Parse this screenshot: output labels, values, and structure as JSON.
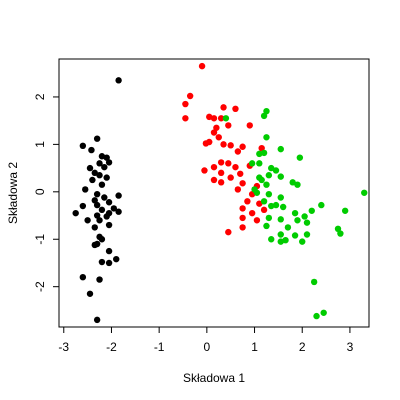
{
  "chart_data": {
    "type": "scatter",
    "title": "",
    "xlabel": "Składowa 1",
    "ylabel": "Składowa 2",
    "xlim": [
      -3.1,
      3.4
    ],
    "ylim": [
      -2.85,
      2.8
    ],
    "x_ticks": [
      -3,
      -2,
      -1,
      0,
      1,
      2,
      3
    ],
    "y_ticks": [
      -2,
      -1,
      0,
      1,
      2
    ],
    "grid": false,
    "legend": "none",
    "series": [
      {
        "color": "#000000",
        "points": [
          [
            -1.85,
            2.35
          ],
          [
            -2.6,
            0.97
          ],
          [
            -2.3,
            1.12
          ],
          [
            -2.42,
            0.88
          ],
          [
            -2.2,
            0.75
          ],
          [
            -2.1,
            0.72
          ],
          [
            -2.05,
            0.62
          ],
          [
            -2.25,
            0.6
          ],
          [
            -2.15,
            0.52
          ],
          [
            -2.45,
            0.5
          ],
          [
            -2.35,
            0.4
          ],
          [
            -2.25,
            0.35
          ],
          [
            -2.1,
            0.3
          ],
          [
            -2.4,
            0.25
          ],
          [
            -2.2,
            0.15
          ],
          [
            -2.55,
            0.05
          ],
          [
            -2.3,
            -0.05
          ],
          [
            -1.85,
            -0.08
          ],
          [
            -2.15,
            -0.12
          ],
          [
            -2.35,
            -0.18
          ],
          [
            -2.05,
            -0.22
          ],
          [
            -2.3,
            -0.28
          ],
          [
            -2.6,
            -0.3
          ],
          [
            -1.95,
            -0.35
          ],
          [
            -2.2,
            -0.38
          ],
          [
            -1.85,
            -0.42
          ],
          [
            -2.05,
            -0.45
          ],
          [
            -2.3,
            -0.5
          ],
          [
            -2.1,
            -0.52
          ],
          [
            -2.75,
            -0.45
          ],
          [
            -2.25,
            -0.6
          ],
          [
            -2.5,
            -0.6
          ],
          [
            -2.05,
            -0.7
          ],
          [
            -2.35,
            -0.75
          ],
          [
            -2.25,
            -0.95
          ],
          [
            -2.2,
            -1.0
          ],
          [
            -2.3,
            -1.1
          ],
          [
            -2.35,
            -1.12
          ],
          [
            -2.05,
            -1.25
          ],
          [
            -1.9,
            -1.42
          ],
          [
            -2.2,
            -1.48
          ],
          [
            -2.05,
            -1.5
          ],
          [
            -2.6,
            -1.8
          ],
          [
            -2.25,
            -1.85
          ],
          [
            -2.45,
            -2.15
          ],
          [
            -2.3,
            -2.7
          ]
        ]
      },
      {
        "color": "#ff0000",
        "points": [
          [
            -0.1,
            2.65
          ],
          [
            -0.35,
            2.02
          ],
          [
            -0.45,
            1.85
          ],
          [
            0.35,
            1.78
          ],
          [
            0.6,
            1.75
          ],
          [
            -0.45,
            1.55
          ],
          [
            0.05,
            1.58
          ],
          [
            0.15,
            1.55
          ],
          [
            0.3,
            1.55
          ],
          [
            0.2,
            1.35
          ],
          [
            0.45,
            1.4
          ],
          [
            0.9,
            1.4
          ],
          [
            0.15,
            1.25
          ],
          [
            0.25,
            1.15
          ],
          [
            0.05,
            1.05
          ],
          [
            -0.02,
            1.02
          ],
          [
            0.35,
            1.0
          ],
          [
            0.5,
            0.98
          ],
          [
            0.75,
            0.95
          ],
          [
            0.65,
            0.85
          ],
          [
            1.15,
            0.92
          ],
          [
            0.3,
            0.62
          ],
          [
            0.45,
            0.6
          ],
          [
            0.9,
            0.55
          ],
          [
            0.15,
            0.52
          ],
          [
            0.6,
            0.52
          ],
          [
            -0.05,
            0.45
          ],
          [
            0.3,
            0.4
          ],
          [
            0.7,
            0.38
          ],
          [
            0.5,
            0.3
          ],
          [
            0.15,
            0.25
          ],
          [
            0.3,
            0.2
          ],
          [
            0.75,
            0.18
          ],
          [
            1.05,
            0.12
          ],
          [
            0.65,
            0.05
          ],
          [
            0.95,
            -0.05
          ],
          [
            0.85,
            -0.2
          ],
          [
            1.1,
            -0.25
          ],
          [
            0.75,
            -0.35
          ],
          [
            1.2,
            -0.38
          ],
          [
            0.95,
            -0.45
          ],
          [
            0.75,
            -0.55
          ],
          [
            1.05,
            -0.6
          ],
          [
            0.75,
            -0.75
          ],
          [
            0.45,
            -0.85
          ]
        ]
      },
      {
        "color": "#00cc00",
        "points": [
          [
            1.25,
            1.7
          ],
          [
            0.4,
            1.55
          ],
          [
            1.2,
            1.6
          ],
          [
            1.25,
            1.15
          ],
          [
            1.55,
            0.9
          ],
          [
            1.1,
            0.8
          ],
          [
            1.2,
            0.82
          ],
          [
            1.95,
            0.72
          ],
          [
            0.95,
            0.6
          ],
          [
            1.1,
            0.6
          ],
          [
            1.35,
            0.5
          ],
          [
            1.45,
            0.45
          ],
          [
            1.3,
            0.35
          ],
          [
            1.1,
            0.3
          ],
          [
            1.55,
            0.32
          ],
          [
            1.15,
            0.25
          ],
          [
            1.8,
            0.2
          ],
          [
            1.9,
            0.15
          ],
          [
            1.25,
            0.15
          ],
          [
            1.0,
            0.05
          ],
          [
            1.05,
            -0.02
          ],
          [
            1.3,
            -0.05
          ],
          [
            3.3,
            -0.02
          ],
          [
            1.55,
            -0.12
          ],
          [
            1.2,
            -0.2
          ],
          [
            1.45,
            -0.28
          ],
          [
            1.35,
            -0.3
          ],
          [
            1.6,
            -0.32
          ],
          [
            2.4,
            -0.28
          ],
          [
            2.2,
            -0.4
          ],
          [
            1.85,
            -0.45
          ],
          [
            2.05,
            -0.52
          ],
          [
            2.9,
            -0.4
          ],
          [
            1.3,
            -0.55
          ],
          [
            1.55,
            -0.58
          ],
          [
            1.9,
            -0.6
          ],
          [
            2.1,
            -0.65
          ],
          [
            1.25,
            -0.72
          ],
          [
            1.7,
            -0.75
          ],
          [
            2.75,
            -0.78
          ],
          [
            1.55,
            -0.9
          ],
          [
            1.85,
            -0.92
          ],
          [
            2.1,
            -0.9
          ],
          [
            2.8,
            -0.88
          ],
          [
            1.35,
            -1.0
          ],
          [
            1.65,
            -1.02
          ],
          [
            1.55,
            -1.05
          ],
          [
            2.0,
            -1.05
          ],
          [
            2.25,
            -1.9
          ],
          [
            2.45,
            -2.55
          ],
          [
            2.3,
            -2.62
          ]
        ]
      }
    ]
  }
}
